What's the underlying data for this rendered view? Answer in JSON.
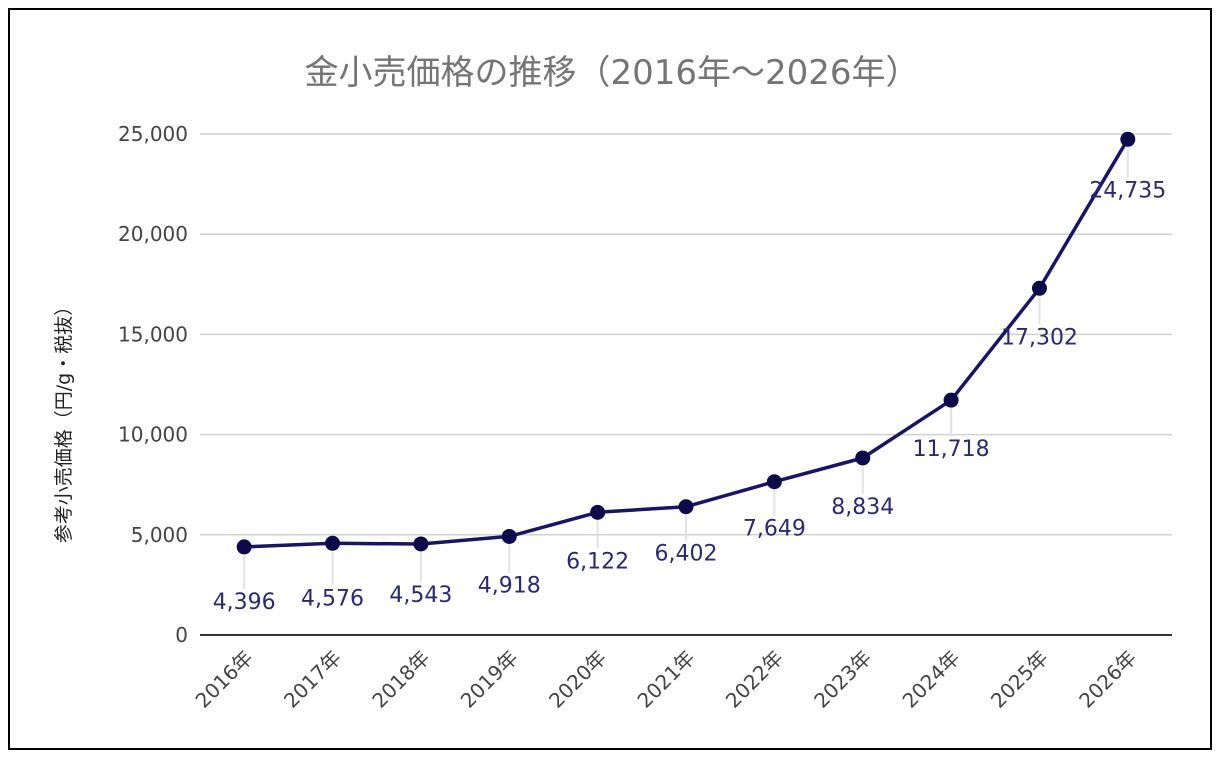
{
  "chart_data": {
    "type": "line",
    "title": "金小売価格の推移（2016年〜2026年）",
    "xlabel": "",
    "ylabel": "参考小売価格（円/g・税抜）",
    "categories": [
      "2016年",
      "2017年",
      "2018年",
      "2019年",
      "2020年",
      "2021年",
      "2022年",
      "2023年",
      "2024年",
      "2025年",
      "2026年"
    ],
    "values": [
      4396,
      4576,
      4543,
      4918,
      6122,
      6402,
      7649,
      8834,
      11718,
      17302,
      24735
    ],
    "data_labels": [
      "4,396",
      "4,576",
      "4,543",
      "4,918",
      "6,122",
      "6,402",
      "7,649",
      "8,834",
      "11,718",
      "17,302",
      "24,735"
    ],
    "ylim": [
      0,
      25000
    ],
    "yticks": [
      0,
      5000,
      10000,
      15000,
      20000,
      25000
    ],
    "ytick_labels": [
      "0",
      "5,000",
      "10,000",
      "15,000",
      "20,000",
      "25,000"
    ],
    "grid": true,
    "legend": "none",
    "line_color": "#1a1464",
    "marker_color": "#0d0a4a",
    "label_color": "#2b2a6e",
    "grid_color": "#d0d0d0",
    "axis_color": "#333333"
  }
}
